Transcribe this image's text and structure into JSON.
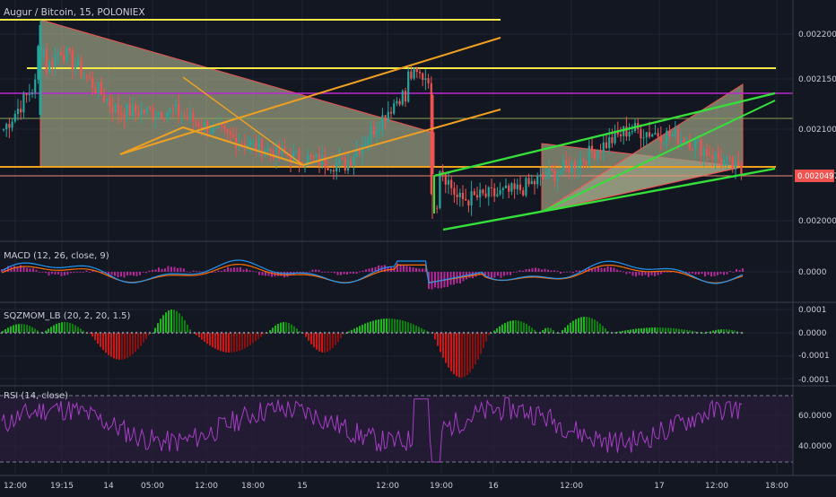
{
  "colors": {
    "background": "#131722",
    "grid": "#1f2433",
    "up": "#26a69a",
    "down": "#ef5350",
    "yellow": "#f5e94a",
    "orange": "#f0a020",
    "green": "#35e03a",
    "magenta": "#c026d3",
    "salmon": "#f28b74",
    "olive": "#8aa055",
    "triangle_fill": "#9aa082",
    "macd_line": "#2196f3",
    "signal_line": "#ff6d00",
    "histogram": "#b5279b",
    "sqz_up": "#18b818",
    "sqz_down": "#d01515",
    "rsi_line": "#a63ec6",
    "rsi_band": "#2b1d3b",
    "price_label_bg": "#ef5350"
  },
  "header": {
    "title": "Augur / Bitcoin, 15, POLONIEX"
  },
  "price_axis": {
    "ticks": [
      "0.00220000",
      "0.00215000",
      "0.00210000",
      "0.00200000"
    ],
    "current_price": "0.00204970"
  },
  "time_axis": {
    "labels": [
      "12:00",
      "19:15",
      "14",
      "05:00",
      "12:00",
      "18:00",
      "15",
      "12:00",
      "19:00",
      "16",
      "12:00",
      "17",
      "12:00",
      "18:00"
    ]
  },
  "panes": {
    "macd": {
      "title": "MACD (12, 26, close, 9)",
      "ticks": [
        "0.0000"
      ]
    },
    "sqzmom": {
      "title": "SQZMOM_LB (20, 2, 20, 1.5)",
      "ticks": [
        "0.0001",
        "0.0000",
        "-0.0001",
        "-0.0001"
      ]
    },
    "rsi": {
      "title": "RSI (14, close)",
      "ticks": [
        "60.0000",
        "40.0000"
      ],
      "upper_band": 70,
      "lower_band": 30
    }
  },
  "chart_data": {
    "type": "line",
    "symbol": "Augur / Bitcoin",
    "interval": "15",
    "exchange": "POLONIEX",
    "scale": "linear",
    "grid": true,
    "price_series_anchors": {
      "x": [
        "12:00",
        "19:15",
        "14",
        "05:00",
        "12:00",
        "18:00",
        "15",
        "12:00",
        "19:00",
        "16",
        "12:00",
        "17",
        "12:00",
        "18:00"
      ],
      "close": [
        0.0021,
        0.00219,
        0.00212,
        0.00212,
        0.00209,
        0.00207,
        0.00206,
        0.00214,
        0.00202,
        0.00203,
        0.00206,
        0.0021,
        0.00209,
        0.00205
      ]
    },
    "current_price": 0.0020497,
    "horizontal_levels": [
      {
        "price": 0.002213,
        "color": "yellow"
      },
      {
        "price": 0.002162,
        "color": "yellow"
      },
      {
        "price": 0.002134,
        "color": "magenta"
      },
      {
        "price": 0.002108,
        "color": "olive"
      },
      {
        "price": 0.002058,
        "color": "orange"
      },
      {
        "price": 0.0020497,
        "color": "salmon"
      }
    ],
    "macd": {
      "ylim": [
        -2e-05,
        2e-05
      ]
    },
    "sqzmom": {
      "ylim": [
        -0.0001,
        0.0001
      ]
    },
    "rsi": {
      "ylim": [
        25,
        75
      ],
      "bands": [
        30,
        70
      ]
    }
  }
}
